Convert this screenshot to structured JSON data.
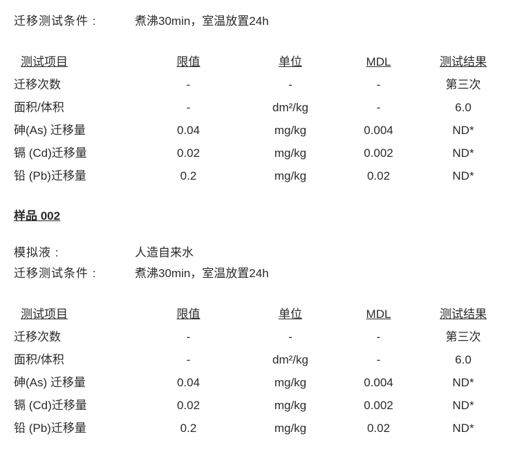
{
  "section1": {
    "condition_label": "迁移测试条件 :",
    "condition_value": "煮沸30min，室温放置24h",
    "headers": {
      "col1": "测试项目",
      "col2": "限值",
      "col3": "单位",
      "col4": "MDL",
      "col5": "测试结果"
    },
    "rows": [
      {
        "c1": "迁移次数",
        "c2": "-",
        "c3": "-",
        "c4": "-",
        "c5": "第三次"
      },
      {
        "c1": "面积/体积",
        "c2": "-",
        "c3": "dm²/kg",
        "c4": "-",
        "c5": "6.0"
      },
      {
        "c1": "砷(As) 迁移量",
        "c2": "0.04",
        "c3": "mg/kg",
        "c4": "0.004",
        "c5": "ND*"
      },
      {
        "c1": "镉 (Cd)迁移量",
        "c2": "0.02",
        "c3": "mg/kg",
        "c4": "0.002",
        "c5": "ND*"
      },
      {
        "c1": "铅 (Pb)迁移量",
        "c2": "0.2",
        "c3": "mg/kg",
        "c4": "0.02",
        "c5": "ND*"
      }
    ]
  },
  "sample_title": "样品 002",
  "section2": {
    "simulant_label": "模拟液 :",
    "simulant_value": "人造自来水",
    "condition_label": "迁移测试条件 :",
    "condition_value": "煮沸30min，室温放置24h",
    "headers": {
      "col1": "测试项目",
      "col2": "限值",
      "col3": "单位",
      "col4": "MDL",
      "col5": "测试结果"
    },
    "rows": [
      {
        "c1": "迁移次数",
        "c2": "-",
        "c3": "-",
        "c4": "-",
        "c5": "第三次"
      },
      {
        "c1": "面积/体积",
        "c2": "-",
        "c3": "dm²/kg",
        "c4": "-",
        "c5": "6.0"
      },
      {
        "c1": "砷(As) 迁移量",
        "c2": "0.04",
        "c3": "mg/kg",
        "c4": "0.004",
        "c5": "ND*"
      },
      {
        "c1": "镉 (Cd)迁移量",
        "c2": "0.02",
        "c3": "mg/kg",
        "c4": "0.002",
        "c5": "ND*"
      },
      {
        "c1": "铅 (Pb)迁移量",
        "c2": "0.2",
        "c3": "mg/kg",
        "c4": "0.02",
        "c5": "ND*"
      }
    ]
  }
}
